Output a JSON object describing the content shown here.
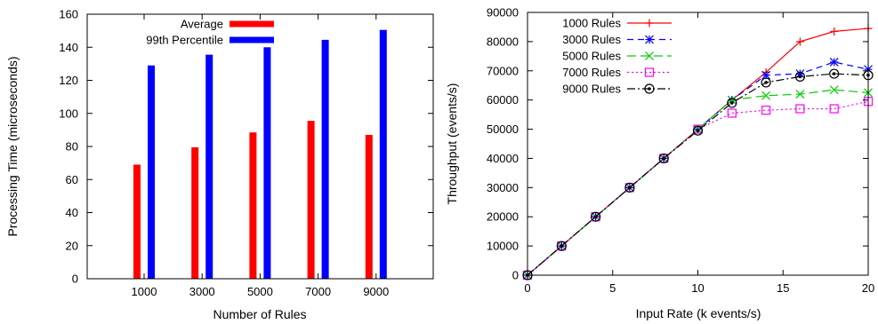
{
  "chart_data": [
    {
      "type": "bar",
      "xlabel": "Number of Rules",
      "ylabel": "Processing Time (microseconds)",
      "ylim": [
        0,
        160
      ],
      "yticks": [
        0,
        20,
        40,
        60,
        80,
        100,
        120,
        140,
        160
      ],
      "grid": false,
      "legend_position": "top-right",
      "categories": [
        "1000",
        "3000",
        "5000",
        "7000",
        "9000"
      ],
      "series": [
        {
          "name": "Average",
          "color": "#ff0000",
          "values": [
            69,
            79.5,
            88.5,
            95.5,
            87
          ]
        },
        {
          "name": "99th Percentile",
          "color": "#0000ff",
          "values": [
            129,
            135.5,
            140,
            144.5,
            150.5
          ]
        }
      ]
    },
    {
      "type": "line",
      "xlabel": "Input Rate (k events/s)",
      "ylabel": "Throughput (events/s)",
      "xlim": [
        0,
        20
      ],
      "ylim": [
        0,
        90000
      ],
      "xticks": [
        0,
        5,
        10,
        15,
        20
      ],
      "yticks": [
        0,
        10000,
        20000,
        30000,
        40000,
        50000,
        60000,
        70000,
        80000,
        90000
      ],
      "grid": false,
      "legend_position": "top-left",
      "x": [
        0,
        2,
        4,
        6,
        8,
        10,
        12,
        14,
        16,
        18,
        20
      ],
      "series": [
        {
          "name": "1000 Rules",
          "color": "#ff0000",
          "marker": "plus",
          "dash": "",
          "values": [
            0,
            10000,
            20000,
            30000,
            40000,
            50000,
            60000,
            69500,
            80000,
            83500,
            84500
          ]
        },
        {
          "name": "3000 Rules",
          "color": "#0000ff",
          "marker": "star",
          "dash": "7,5",
          "values": [
            0,
            10000,
            20000,
            30000,
            40000,
            50000,
            60000,
            68500,
            69000,
            73000,
            70500
          ]
        },
        {
          "name": "5000 Rules",
          "color": "#00cc00",
          "marker": "cross",
          "dash": "10,5",
          "values": [
            0,
            10000,
            20000,
            30000,
            40000,
            50000,
            60000,
            61500,
            62000,
            63500,
            62500
          ]
        },
        {
          "name": "7000 Rules",
          "color": "#ff00ff",
          "marker": "square",
          "dash": "2,3",
          "values": [
            0,
            10000,
            20000,
            30000,
            40000,
            50000,
            55500,
            56500,
            57000,
            57000,
            59500
          ]
        },
        {
          "name": "9000 Rules",
          "color": "#000000",
          "marker": "circle-dot",
          "dash": "9,3,2,3",
          "values": [
            0,
            10000,
            20000,
            30000,
            40000,
            49500,
            59000,
            66000,
            68000,
            69000,
            68500
          ]
        }
      ]
    }
  ]
}
